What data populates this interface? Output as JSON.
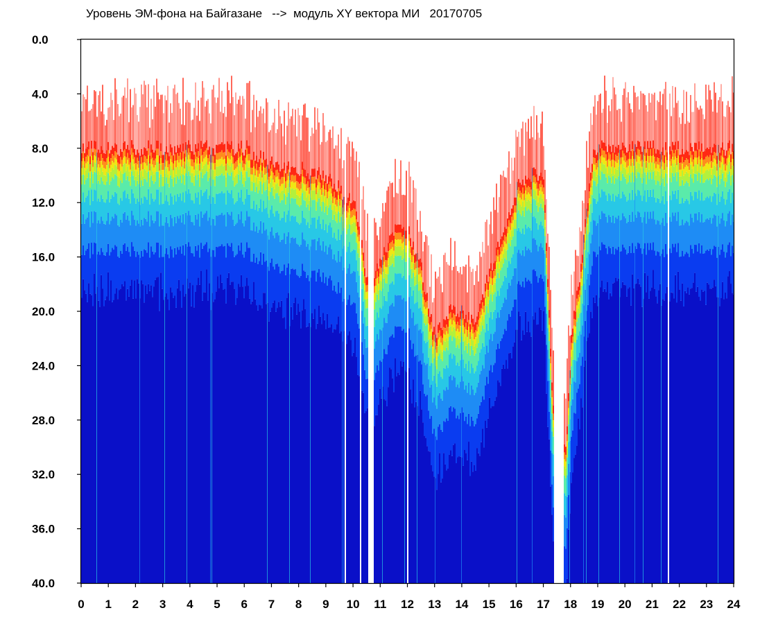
{
  "chart_data": {
    "type": "heatmap",
    "title": "Уровень ЭМ-фона на Байгазане   -->  модуль XY вектора МИ   20170705",
    "xlabel": "",
    "ylabel": "",
    "xlim": [
      0,
      24
    ],
    "ylim": [
      0,
      40
    ],
    "y_inverted": true,
    "grid": false,
    "x_ticks": [
      "0",
      "1",
      "2",
      "3",
      "4",
      "5",
      "6",
      "7",
      "8",
      "9",
      "10",
      "11",
      "12",
      "13",
      "14",
      "15",
      "16",
      "17",
      "18",
      "19",
      "20",
      "21",
      "22",
      "23",
      "24"
    ],
    "y_ticks": [
      "0.0",
      "4.0",
      "8.0",
      "12.0",
      "16.0",
      "20.0",
      "24.0",
      "28.0",
      "32.0",
      "36.0",
      "40.0"
    ],
    "colormap": [
      "#0a10c8",
      "#0a3cf0",
      "#1e8cf5",
      "#28c8e6",
      "#5aebaa",
      "#b4f03c",
      "#f0e614",
      "#ff8c1e",
      "#ff2814"
    ],
    "upper_envelope": {
      "hours": [
        0,
        0.5,
        1,
        2,
        3,
        4,
        5,
        6.1,
        6.2,
        7,
        8,
        9,
        10,
        10.2,
        10.6,
        11,
        11.5,
        12,
        12.5,
        13,
        13.5,
        14,
        14.5,
        15,
        15.5,
        16,
        16.5,
        17,
        17.3,
        17.8,
        18,
        18.4,
        18.8,
        19,
        20,
        21,
        21.5,
        22,
        23,
        24
      ],
      "values": [
        8.0,
        8.0,
        8.0,
        8.0,
        8.0,
        8.0,
        8.0,
        8.0,
        8.5,
        9.0,
        9.5,
        10.0,
        12.0,
        14.0,
        19.0,
        16.0,
        14.0,
        14.0,
        17.0,
        22.0,
        20.0,
        20.0,
        21.0,
        17.0,
        14.0,
        11.0,
        10.0,
        10.0,
        26.0,
        30.0,
        22.0,
        16.0,
        8.0,
        8.0,
        8.0,
        8.0,
        8.0,
        8.0,
        8.0,
        8.0
      ]
    },
    "gaps": [
      {
        "from": 9.65,
        "to": 9.7
      },
      {
        "from": 10.22,
        "to": 10.28
      },
      {
        "from": 10.55,
        "to": 10.75
      },
      {
        "from": 11.95,
        "to": 12.0
      },
      {
        "from": 17.35,
        "to": 17.75
      },
      {
        "from": 21.55,
        "to": 21.6
      }
    ]
  }
}
